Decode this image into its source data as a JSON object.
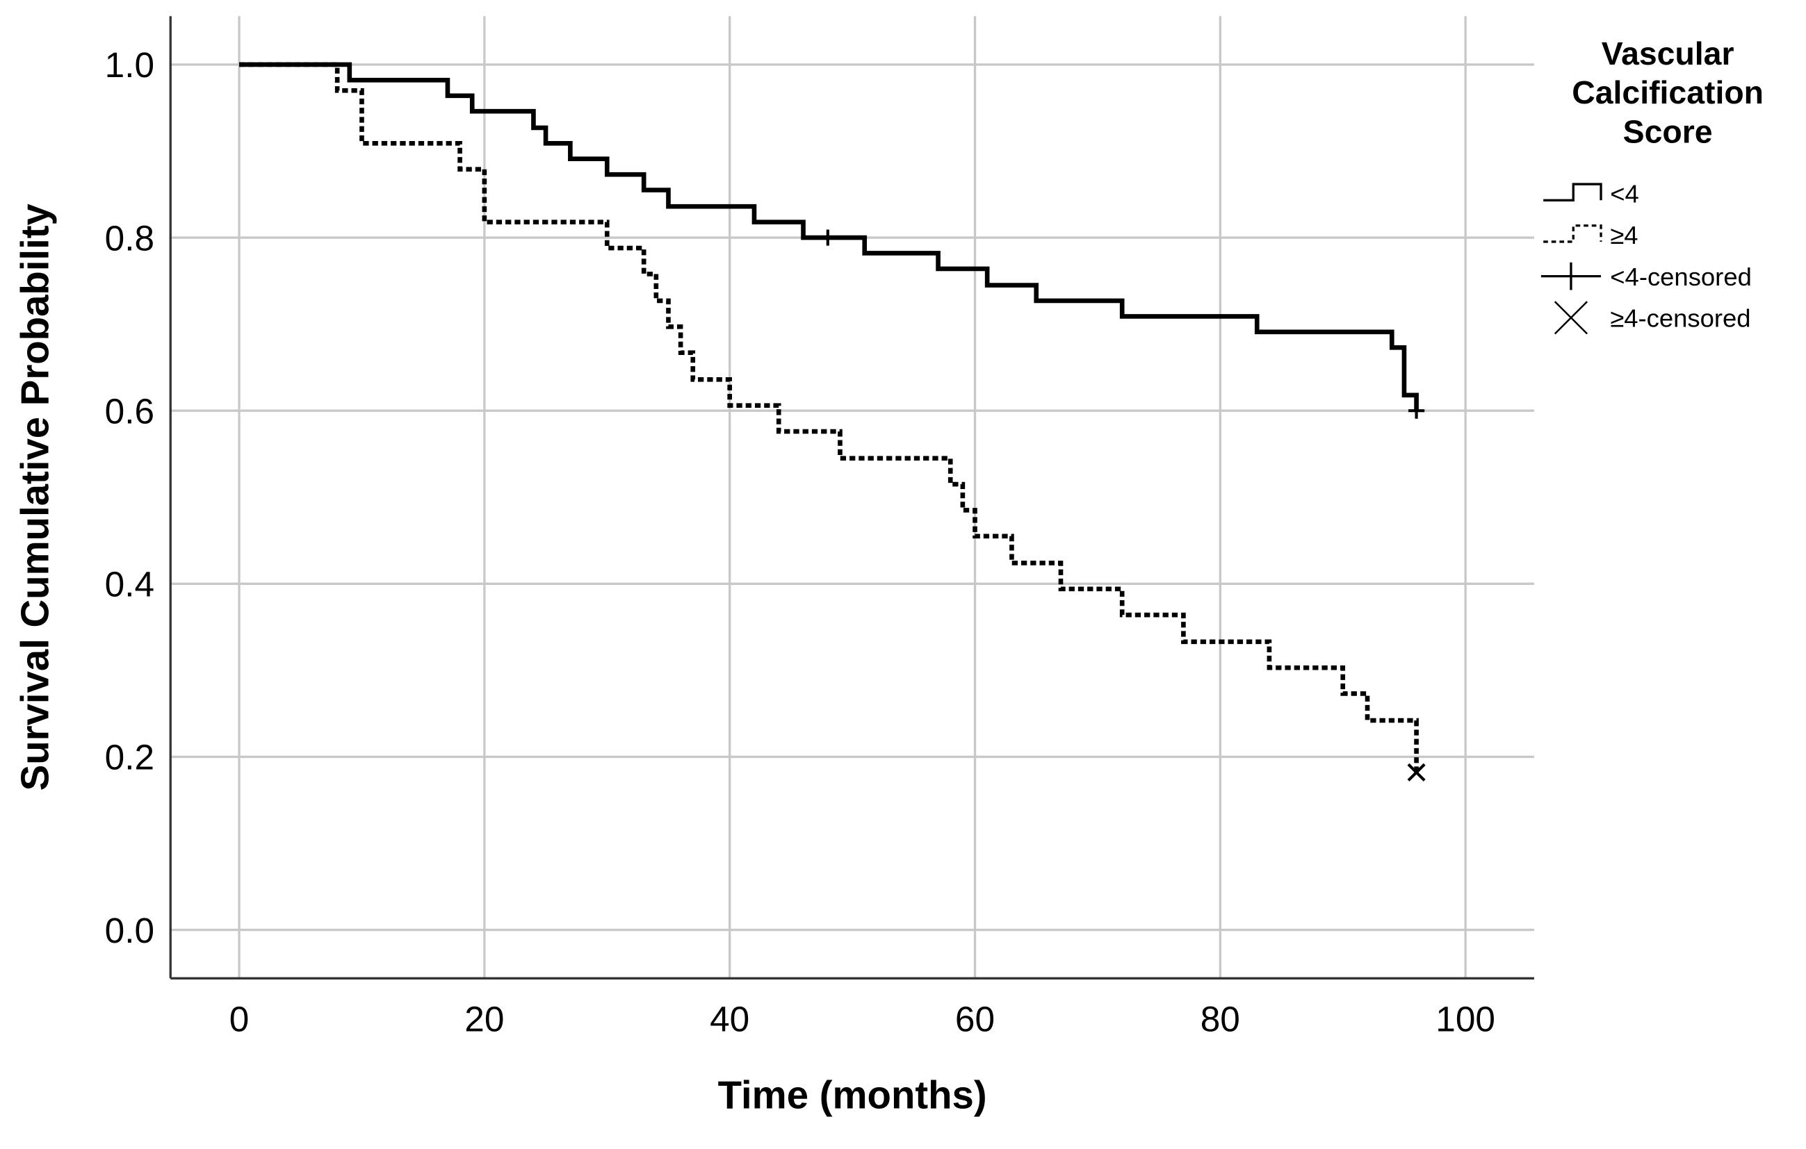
{
  "chart_data": {
    "type": "step",
    "x_label": "Time (months)",
    "y_label": "Survival Cumulative Probability",
    "legend_title": [
      "Vascular",
      "Calcification",
      "Score"
    ],
    "xlim": [
      -5.6,
      105.6
    ],
    "ylim": [
      -0.056,
      1.056
    ],
    "xticks": [
      0,
      20,
      40,
      60,
      80,
      100
    ],
    "yticks": [
      {
        "value": 0,
        "label": "0.0"
      },
      0.2,
      0.4,
      0.6,
      0.8,
      {
        "value": 1,
        "label": "1.0"
      }
    ],
    "grid": true,
    "legend": "right",
    "series": [
      {
        "name": "<4",
        "color": "#000000",
        "style": "solid",
        "x": [
          0,
          9,
          17,
          19,
          24,
          25,
          27,
          30,
          33,
          35,
          42,
          46,
          51,
          57,
          61,
          65,
          72,
          83,
          94,
          95,
          96
        ],
        "values": [
          1.0,
          0.982,
          0.964,
          0.946,
          0.927,
          0.909,
          0.891,
          0.873,
          0.855,
          0.836,
          0.818,
          0.8,
          0.782,
          0.764,
          0.745,
          0.727,
          0.709,
          0.691,
          0.673,
          0.618,
          0.6
        ]
      },
      {
        "name": "≥4",
        "color": "#000000",
        "style": "dotted",
        "x": [
          0,
          8,
          10,
          18,
          20,
          30,
          33,
          34,
          35,
          36,
          37,
          40,
          44,
          49,
          58,
          59,
          60,
          63,
          67,
          72,
          77,
          84,
          90,
          92,
          96
        ],
        "values": [
          1.0,
          0.97,
          0.909,
          0.879,
          0.818,
          0.788,
          0.758,
          0.727,
          0.697,
          0.667,
          0.636,
          0.606,
          0.576,
          0.545,
          0.515,
          0.485,
          0.455,
          0.424,
          0.394,
          0.364,
          0.333,
          0.303,
          0.273,
          0.242,
          0.182
        ]
      },
      {
        "name": "<4-censored",
        "color": "#000000",
        "marker": "plus",
        "x": [
          48,
          96
        ],
        "values": [
          0.8,
          0.6
        ]
      },
      {
        "name": "≥4-censored",
        "color": "#000000",
        "marker": "x",
        "x": [
          96
        ],
        "values": [
          0.182
        ]
      }
    ]
  }
}
